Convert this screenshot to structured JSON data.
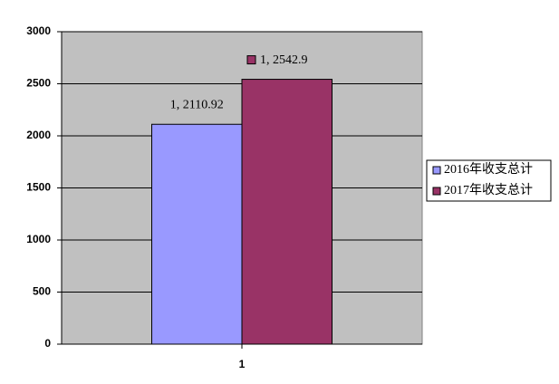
{
  "chart_data": {
    "type": "bar",
    "categories": [
      "1"
    ],
    "series": [
      {
        "name": "2016年收支总计",
        "color": "#9999ff",
        "values": [
          2110.92
        ],
        "value_labels": [
          "1, 2110.92"
        ]
      },
      {
        "name": "2017年收支总计",
        "color": "#993366",
        "values": [
          2542.9
        ],
        "value_labels": [
          "1, 2542.9"
        ]
      }
    ],
    "ylim": [
      0,
      3000
    ],
    "yticks": [
      0,
      500,
      1000,
      1500,
      2000,
      2500,
      3000
    ],
    "grid": true,
    "legend": "right"
  }
}
